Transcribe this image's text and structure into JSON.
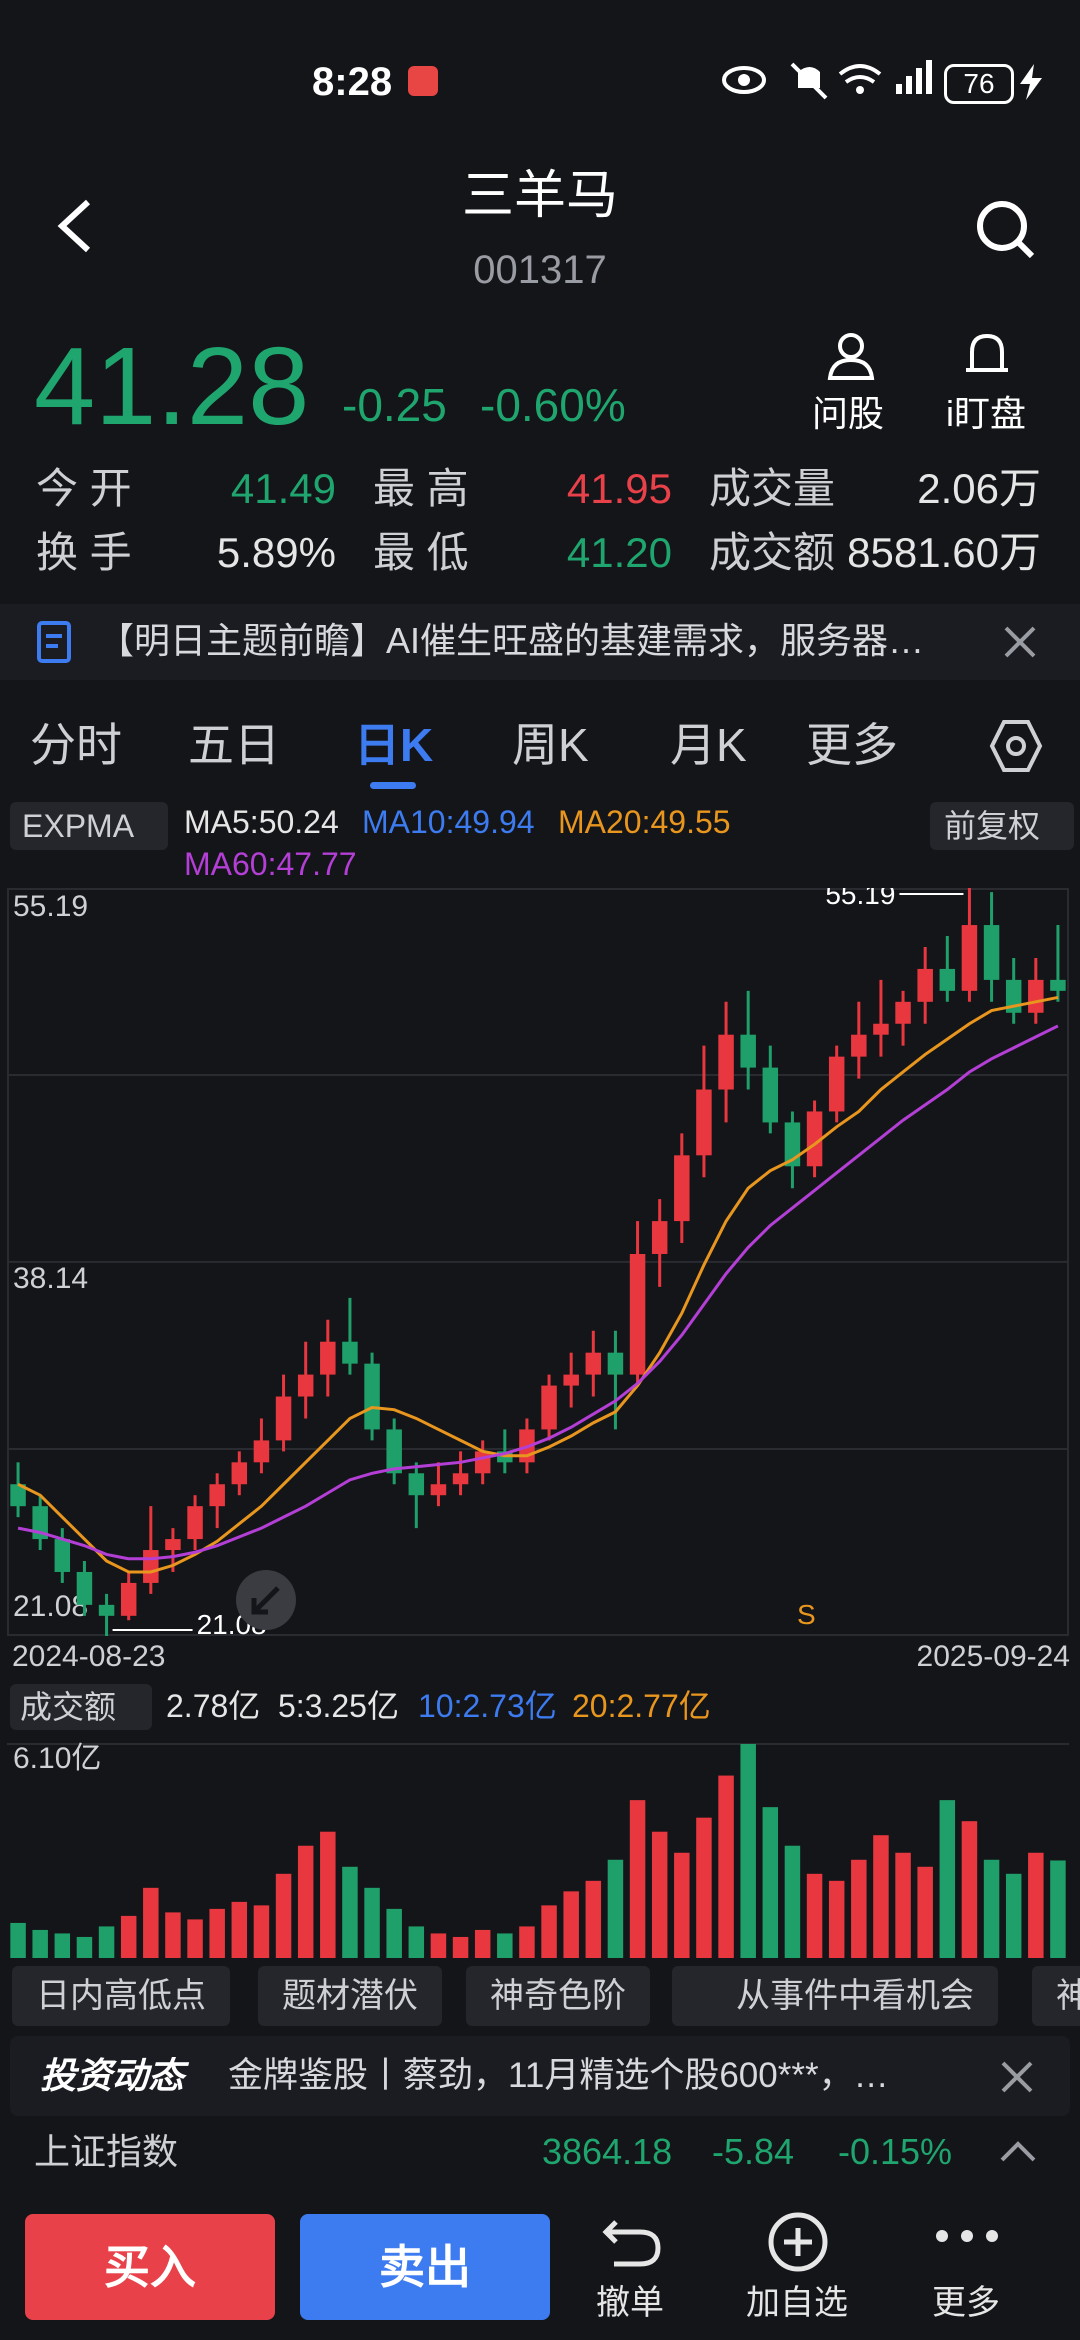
{
  "status": {
    "time": "8:28",
    "battery": "76"
  },
  "header": {
    "title": "三羊马",
    "code": "001317"
  },
  "quote": {
    "price": "41.28",
    "change": "-0.25",
    "change_pct": "-0.60%",
    "ask_label": "问股",
    "watch_label": "i盯盘",
    "stats": [
      [
        "今 开",
        "41.49",
        "最 高",
        "41.95",
        "成交量",
        "2.06万"
      ],
      [
        "换 手",
        "5.89%",
        "最 低",
        "41.20",
        "成交额",
        "8581.60万"
      ]
    ]
  },
  "news": {
    "text": "【明日主题前瞻】AI催生旺盛的基建需求，服务器…"
  },
  "tabs": [
    "分时",
    "五日",
    "日K",
    "周K",
    "月K",
    "更多"
  ],
  "indicators": {
    "main": "EXPMA",
    "ma5": "MA5:50.24",
    "ma10": "MA10:49.94",
    "ma20": "MA20:49.55",
    "ma60": "MA60:47.77",
    "adjust": "前复权"
  },
  "kline": {
    "type": "candlestick",
    "ylim": [
      21.08,
      55.19
    ],
    "yticks": [
      21.08,
      38.14,
      55.19
    ],
    "max_label": "55.19",
    "min_label": "21.08",
    "signal": "S",
    "start_date": "2024-08-23",
    "end_date": "2025-09-24",
    "up_color": "#e8373f",
    "down_color": "#1fa06a",
    "candles": [
      [
        28,
        29,
        26.5,
        27
      ],
      [
        27,
        27.5,
        25,
        25.5
      ],
      [
        25.5,
        26,
        23.5,
        24
      ],
      [
        24,
        24.5,
        22,
        22.5
      ],
      [
        22.5,
        23,
        21.08,
        22
      ],
      [
        22,
        24,
        21.8,
        23.5
      ],
      [
        23.5,
        27,
        23,
        25
      ],
      [
        25,
        26,
        24,
        25.5
      ],
      [
        25.5,
        27.5,
        25,
        27
      ],
      [
        27,
        28.5,
        26,
        28
      ],
      [
        28,
        29.5,
        27.5,
        29
      ],
      [
        29,
        31,
        28.5,
        30
      ],
      [
        30,
        33,
        29.5,
        32
      ],
      [
        32,
        34.5,
        31,
        33
      ],
      [
        33,
        35.5,
        32,
        34.5
      ],
      [
        34.5,
        36.5,
        33,
        33.5
      ],
      [
        33.5,
        34,
        30,
        30.5
      ],
      [
        30.5,
        31,
        28,
        28.5
      ],
      [
        28.5,
        29,
        26,
        27.5
      ],
      [
        27.5,
        29,
        27,
        28
      ],
      [
        28,
        29.5,
        27.5,
        28.5
      ],
      [
        28.5,
        30,
        28,
        29.5
      ],
      [
        29.5,
        30.5,
        28.5,
        29
      ],
      [
        29,
        31,
        28.5,
        30.5
      ],
      [
        30.5,
        33,
        30,
        32.5
      ],
      [
        32.5,
        34,
        31.5,
        33
      ],
      [
        33,
        35,
        32,
        34
      ],
      [
        34,
        35,
        30.5,
        33
      ],
      [
        33,
        40,
        32.5,
        38.5
      ],
      [
        38.5,
        41,
        37,
        40
      ],
      [
        40,
        44,
        39,
        43
      ],
      [
        43,
        48,
        42,
        46
      ],
      [
        46,
        50,
        44.5,
        48.5
      ],
      [
        48.5,
        50.5,
        46,
        47
      ],
      [
        47,
        48,
        44,
        44.5
      ],
      [
        44.5,
        45,
        41.5,
        42.5
      ],
      [
        42.5,
        45.5,
        42,
        45
      ],
      [
        45,
        48,
        44.5,
        47.5
      ],
      [
        47.5,
        50,
        46.5,
        48.5
      ],
      [
        48.5,
        51,
        47.5,
        49
      ],
      [
        49,
        50.5,
        48,
        50
      ],
      [
        50,
        52.5,
        49,
        51.5
      ],
      [
        51.5,
        53,
        50,
        50.5
      ],
      [
        50.5,
        55.19,
        50,
        53.5
      ],
      [
        53.5,
        55,
        50,
        51
      ],
      [
        51,
        52,
        49,
        49.5
      ],
      [
        49.5,
        52,
        49,
        51
      ],
      [
        51,
        53.5,
        50,
        50.5
      ]
    ],
    "lines": [
      {
        "name": "MA20",
        "color": "#e8961e",
        "values": [
          28,
          27.5,
          26.5,
          25.5,
          24.5,
          24,
          24,
          24.3,
          24.8,
          25.4,
          26.2,
          27,
          28,
          29,
          30,
          31,
          31.5,
          31.4,
          31,
          30.5,
          30,
          29.5,
          29.3,
          29.3,
          29.7,
          30.2,
          30.8,
          31.3,
          32.5,
          34,
          35.8,
          38,
          40,
          41.5,
          42.3,
          42.8,
          43.5,
          44.3,
          45,
          46,
          46.8,
          47.6,
          48.3,
          49,
          49.6,
          49.8,
          50,
          50.2
        ]
      },
      {
        "name": "MA60",
        "color": "#b43fd6",
        "values": [
          26,
          25.8,
          25.5,
          25.2,
          24.8,
          24.6,
          24.6,
          24.7,
          24.9,
          25.2,
          25.6,
          26,
          26.5,
          27,
          27.6,
          28.2,
          28.5,
          28.7,
          28.8,
          28.9,
          29,
          29.2,
          29.4,
          29.7,
          30.1,
          30.6,
          31.2,
          31.8,
          32.6,
          33.6,
          34.8,
          36.2,
          37.6,
          38.8,
          39.8,
          40.6,
          41.4,
          42.2,
          43,
          43.8,
          44.6,
          45.3,
          46,
          46.8,
          47.4,
          47.9,
          48.4,
          48.9
        ]
      }
    ]
  },
  "volume": {
    "type": "bar",
    "label": "成交额",
    "latest": "2.78亿",
    "ma5": "5:3.25亿",
    "ma10": "10:2.73亿",
    "ma20": "20:2.77亿",
    "ylim": [
      0,
      6.1
    ],
    "yticks": [
      {
        "value": 6.1,
        "label": "6.10亿"
      }
    ],
    "values": [
      1.0,
      0.8,
      0.7,
      0.6,
      0.9,
      1.2,
      2.0,
      1.3,
      1.1,
      1.4,
      1.6,
      1.5,
      2.4,
      3.2,
      3.6,
      2.6,
      2.0,
      1.4,
      0.9,
      0.7,
      0.6,
      0.8,
      0.7,
      0.9,
      1.5,
      1.9,
      2.2,
      2.8,
      4.5,
      3.6,
      3.0,
      4.0,
      5.2,
      6.1,
      4.3,
      3.2,
      2.4,
      2.2,
      2.8,
      3.5,
      3.0,
      2.6,
      4.5,
      3.9,
      2.8,
      2.4,
      3.0,
      2.78
    ]
  },
  "chips": [
    "日内高低点",
    "题材潜伏",
    "神奇色阶",
    "从事件中看机会",
    "神"
  ],
  "invest": {
    "logo": "投资动态",
    "text": "金牌鉴股丨蔡劲，11月精选个股600***，…"
  },
  "index_bar": {
    "name": "上证指数",
    "value": "3864.18",
    "change": "-5.84",
    "change_pct": "-0.15%"
  },
  "actions": {
    "buy": "买入",
    "sell": "卖出",
    "cancel": "撤单",
    "add": "加自选",
    "more": "更多"
  }
}
